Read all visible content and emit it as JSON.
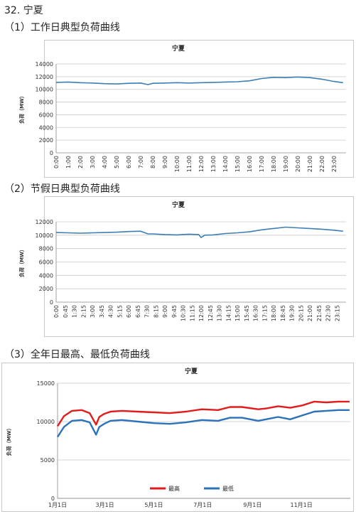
{
  "page": {
    "main_heading": "32. 宁夏",
    "heading_1": "（1）工作日典型负荷曲线",
    "heading_2": "（2）节假日典型负荷曲线",
    "heading_3": "（3）全年日最高、最低负荷曲线"
  },
  "colors": {
    "line_blue": "#3b7fb6",
    "max_red": "#e21b1b",
    "min_blue": "#2b72b8"
  },
  "chart_data": [
    {
      "type": "line",
      "title": "宁夏",
      "ylabel": "负荷（MW）",
      "xlabel": "",
      "ylim": [
        0,
        14000
      ],
      "yticks": [
        0,
        2000,
        4000,
        6000,
        8000,
        10000,
        12000,
        14000
      ],
      "xtick_labels": [
        "0:00",
        "1:00",
        "2:00",
        "3:00",
        "4:00",
        "5:00",
        "6:00",
        "7:00",
        "8:00",
        "9:00",
        "10:00",
        "11:00",
        "12:00",
        "13:00",
        "14:00",
        "15:00",
        "16:00",
        "17:00",
        "18:00",
        "19:00",
        "20:00",
        "21:00",
        "22:00",
        "23:00"
      ],
      "grid": true,
      "series": [
        {
          "color": "#3b7fb6",
          "x": [
            0,
            1,
            2,
            3,
            4,
            5,
            6,
            7,
            7.6,
            8,
            9,
            10,
            11,
            12,
            13,
            14,
            15,
            16,
            17,
            18,
            19,
            20,
            21,
            22,
            23,
            23.75
          ],
          "values": [
            11100,
            11150,
            11050,
            11000,
            10900,
            10850,
            10950,
            11000,
            10750,
            10950,
            11000,
            11050,
            11000,
            11050,
            11100,
            11150,
            11200,
            11350,
            11700,
            11900,
            11850,
            11950,
            11850,
            11600,
            11250,
            11050
          ]
        }
      ]
    },
    {
      "type": "line",
      "title": "宁夏",
      "ylabel": "负荷（MW）",
      "xlabel": "",
      "ylim": [
        0,
        12000
      ],
      "yticks": [
        0,
        2000,
        4000,
        6000,
        8000,
        10000,
        12000
      ],
      "xtick_labels": [
        "0:00",
        "0:45",
        "1:30",
        "2:15",
        "3:00",
        "3:45",
        "4:30",
        "5:15",
        "6:00",
        "6:45",
        "7:30",
        "8:15",
        "9:00",
        "9:45",
        "10:30",
        "11:15",
        "12:00",
        "12:45",
        "13:30",
        "14:15",
        "15:00",
        "15:45",
        "16:30",
        "17:15",
        "18:00",
        "18:45",
        "19:30",
        "20:15",
        "21:00",
        "21:45",
        "22:30",
        "23:15"
      ],
      "grid": true,
      "series": [
        {
          "color": "#3b7fb6",
          "x": [
            0,
            1,
            2,
            3,
            4,
            5,
            6,
            7,
            7.6,
            8,
            9,
            10,
            11,
            11.8,
            12,
            12.3,
            13,
            14,
            15,
            16,
            17,
            18,
            19,
            20,
            21,
            22,
            23,
            23.75
          ],
          "values": [
            10400,
            10350,
            10300,
            10350,
            10400,
            10450,
            10550,
            10600,
            10200,
            10200,
            10100,
            10050,
            10150,
            10100,
            9650,
            10000,
            10050,
            10250,
            10350,
            10500,
            10800,
            11000,
            11200,
            11100,
            11000,
            10900,
            10750,
            10600
          ]
        }
      ]
    },
    {
      "type": "line",
      "title": "宁夏",
      "ylabel": "负荷（MW）",
      "xlabel": "",
      "ylim": [
        0,
        15000
      ],
      "yticks": [
        0,
        5000,
        10000,
        15000
      ],
      "xtick_labels": [
        "1月1日",
        "3月1日",
        "5月1日",
        "7月1日",
        "9月1日",
        "11月1日"
      ],
      "xtick_days": [
        0,
        59,
        120,
        181,
        243,
        304
      ],
      "grid": true,
      "legend": "bottom-center",
      "series": [
        {
          "name": "最高",
          "color": "#e21b1b",
          "x": [
            0,
            8,
            18,
            30,
            40,
            48,
            52,
            58,
            66,
            80,
            100,
            120,
            140,
            160,
            180,
            200,
            215,
            230,
            250,
            260,
            275,
            290,
            305,
            320,
            335,
            350,
            364
          ],
          "values": [
            9400,
            10700,
            11400,
            11500,
            11100,
            9600,
            10600,
            11000,
            11300,
            11400,
            11300,
            11200,
            11100,
            11300,
            11600,
            11500,
            11900,
            11900,
            11600,
            11700,
            12000,
            11800,
            12100,
            12600,
            12500,
            12600,
            12600
          ]
        },
        {
          "name": "最低",
          "color": "#2b72b8",
          "x": [
            0,
            8,
            18,
            30,
            40,
            48,
            52,
            58,
            66,
            80,
            100,
            120,
            140,
            160,
            180,
            200,
            215,
            230,
            250,
            260,
            275,
            290,
            305,
            320,
            335,
            350,
            364
          ],
          "values": [
            8000,
            9300,
            10100,
            10200,
            9900,
            8300,
            9300,
            9700,
            10100,
            10200,
            10000,
            9800,
            9700,
            9900,
            10200,
            10100,
            10500,
            10500,
            10100,
            10300,
            10600,
            10300,
            10800,
            11300,
            11400,
            11500,
            11500
          ]
        }
      ]
    }
  ]
}
